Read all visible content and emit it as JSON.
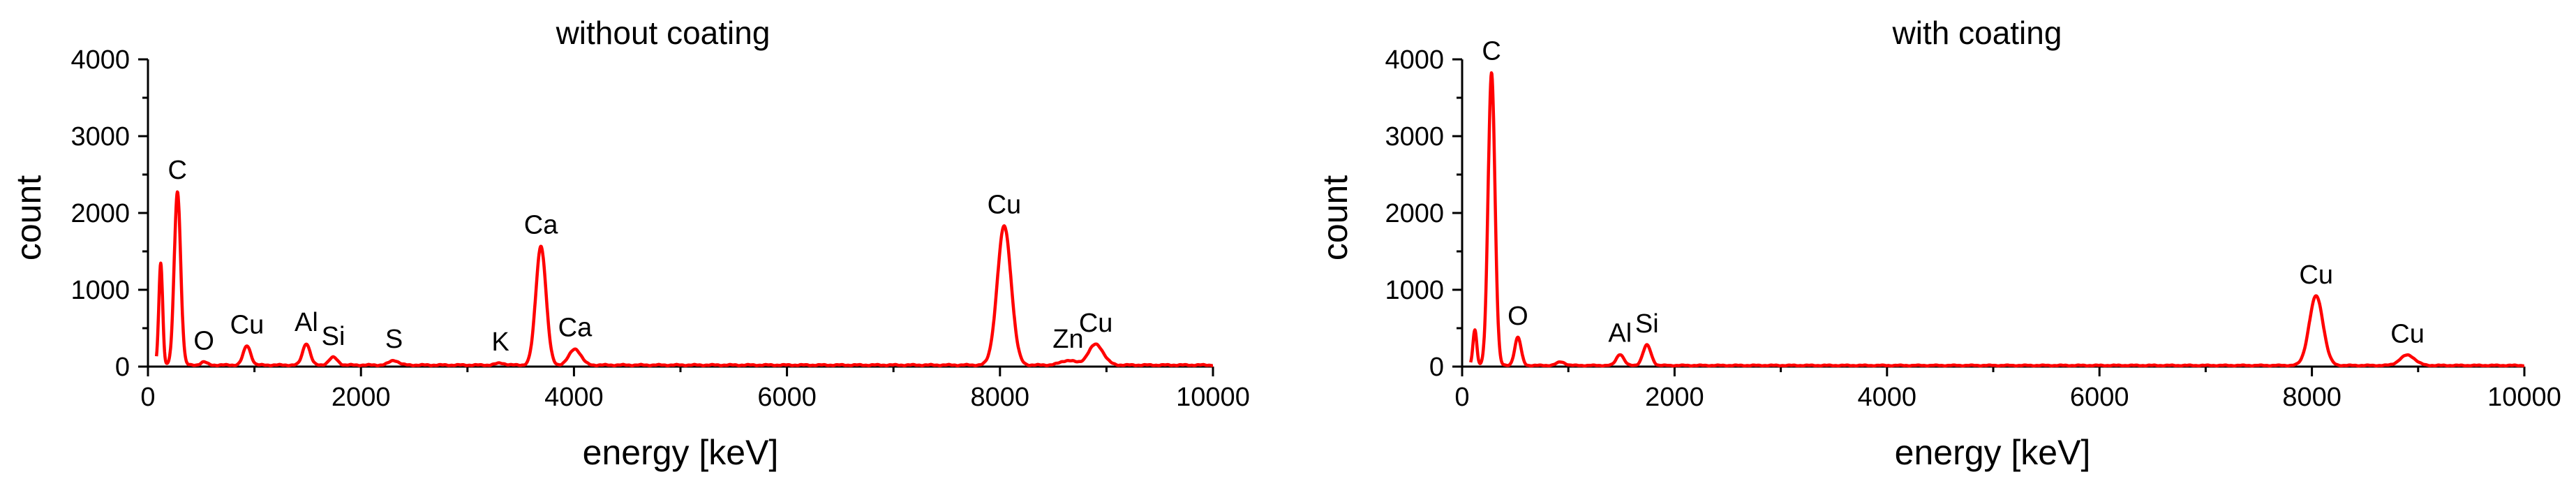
{
  "chart_data": [
    {
      "type": "line",
      "title": "without coating",
      "xlabel": "energy [keV]",
      "ylabel": "count",
      "xlim": [
        0,
        10000
      ],
      "ylim": [
        0,
        4000
      ],
      "xticks": [
        0,
        2000,
        4000,
        6000,
        8000,
        10000
      ],
      "yticks": [
        0,
        1000,
        2000,
        3000,
        4000
      ],
      "grid": false,
      "series": [
        {
          "color": "#ff0000",
          "baseline": 20,
          "peaks": [
            {
              "x": 120,
              "y": 1350,
              "w": 18
            },
            {
              "x": 277,
              "y": 2280,
              "w": 30
            },
            {
              "x": 525,
              "y": 60,
              "w": 30
            },
            {
              "x": 930,
              "y": 270,
              "w": 35
            },
            {
              "x": 1487,
              "y": 300,
              "w": 35
            },
            {
              "x": 1740,
              "y": 120,
              "w": 40
            },
            {
              "x": 2310,
              "y": 80,
              "w": 45
            },
            {
              "x": 3310,
              "y": 45,
              "w": 45
            },
            {
              "x": 3690,
              "y": 1570,
              "w": 48
            },
            {
              "x": 4010,
              "y": 230,
              "w": 55
            },
            {
              "x": 8040,
              "y": 1830,
              "w": 65
            },
            {
              "x": 8640,
              "y": 80,
              "w": 70
            },
            {
              "x": 8900,
              "y": 290,
              "w": 70
            }
          ]
        }
      ],
      "annotations": [
        {
          "text": "C",
          "x": 277,
          "y": 2280
        },
        {
          "text": "O",
          "x": 525,
          "y": 60
        },
        {
          "text": "Cu",
          "x": 930,
          "y": 270
        },
        {
          "text": "Al",
          "x": 1487,
          "y": 300
        },
        {
          "text": "Si",
          "x": 1740,
          "y": 120
        },
        {
          "text": "S",
          "x": 2310,
          "y": 80
        },
        {
          "text": "K",
          "x": 3310,
          "y": 45
        },
        {
          "text": "Ca",
          "x": 3690,
          "y": 1570
        },
        {
          "text": "Ca",
          "x": 4010,
          "y": 230
        },
        {
          "text": "Cu",
          "x": 8040,
          "y": 1830
        },
        {
          "text": "Zn",
          "x": 8640,
          "y": 80
        },
        {
          "text": "Cu",
          "x": 8900,
          "y": 290
        }
      ]
    },
    {
      "type": "line",
      "title": "with coating",
      "xlabel": "energy [keV]",
      "ylabel": "count",
      "xlim": [
        0,
        10000
      ],
      "ylim": [
        0,
        4000
      ],
      "xticks": [
        0,
        2000,
        4000,
        6000,
        8000,
        10000
      ],
      "yticks": [
        0,
        1000,
        2000,
        3000,
        4000
      ],
      "grid": false,
      "series": [
        {
          "color": "#ff0000",
          "baseline": 15,
          "peaks": [
            {
              "x": 120,
              "y": 480,
              "w": 18
            },
            {
              "x": 277,
              "y": 3830,
              "w": 32
            },
            {
              "x": 525,
              "y": 380,
              "w": 30
            },
            {
              "x": 930,
              "y": 60,
              "w": 40
            },
            {
              "x": 1487,
              "y": 160,
              "w": 35
            },
            {
              "x": 1740,
              "y": 280,
              "w": 38
            },
            {
              "x": 8040,
              "y": 920,
              "w": 65
            },
            {
              "x": 8900,
              "y": 150,
              "w": 70
            }
          ]
        }
      ],
      "annotations": [
        {
          "text": "C",
          "x": 277,
          "y": 3830
        },
        {
          "text": "O",
          "x": 525,
          "y": 380
        },
        {
          "text": "Al",
          "x": 1487,
          "y": 160
        },
        {
          "text": "Si",
          "x": 1740,
          "y": 280
        },
        {
          "text": "Cu",
          "x": 8040,
          "y": 920
        },
        {
          "text": "Cu",
          "x": 8900,
          "y": 150
        }
      ]
    }
  ]
}
